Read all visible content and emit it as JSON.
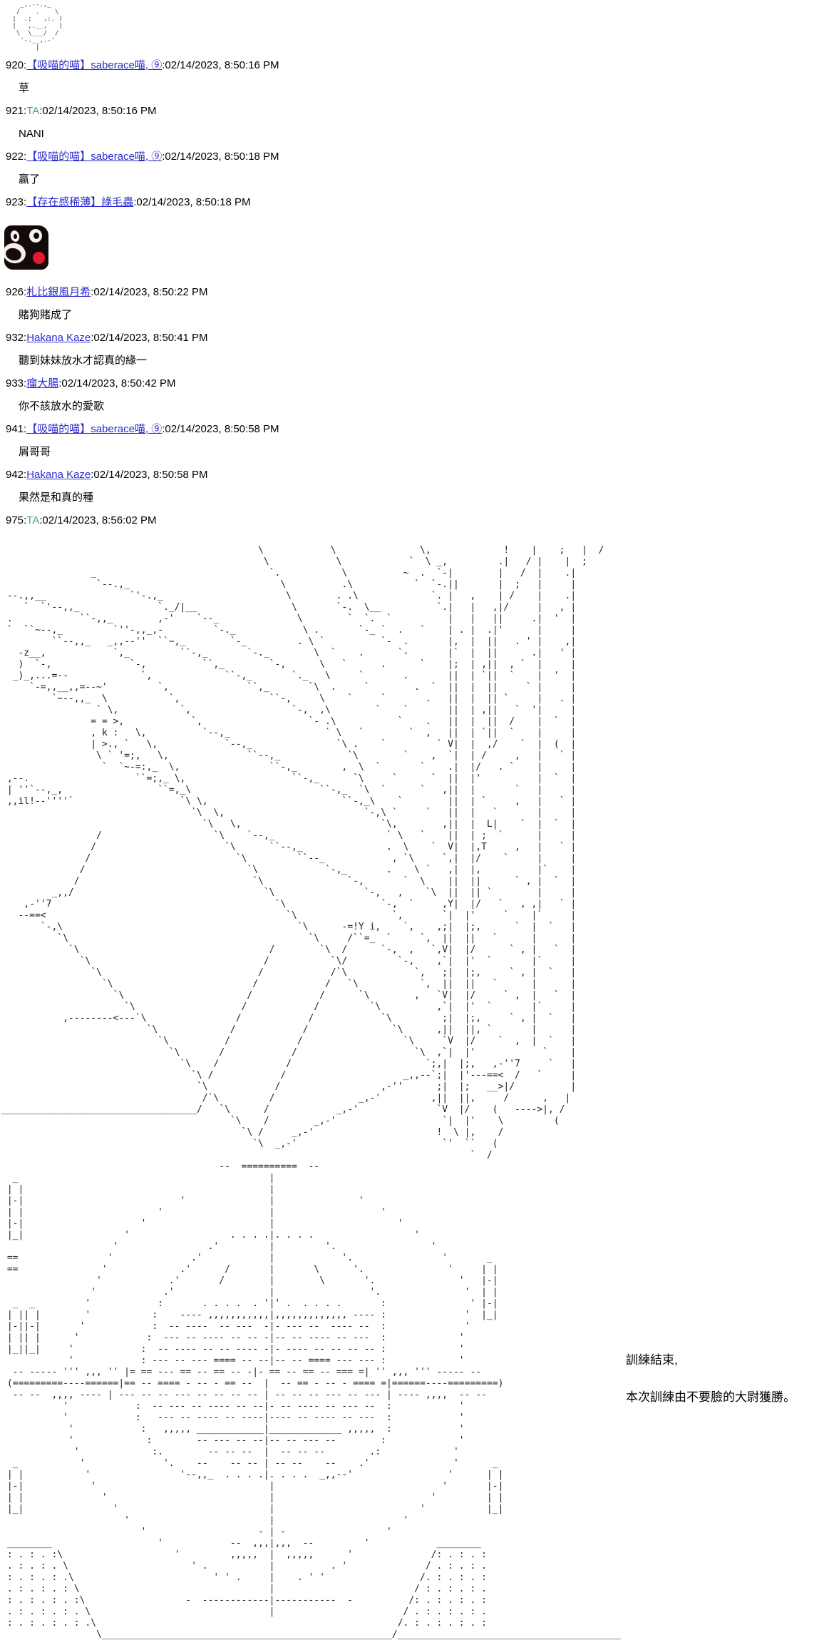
{
  "colors": {
    "link_blue": "#2a2ad0",
    "ta_green": "#4aa564",
    "text": "#000000",
    "aa_ink": "#222222",
    "kumamon_black": "#150a0b",
    "kumamon_red": "#e8192c"
  },
  "avatars": {
    "face_aa": "   _,.--.,_\n  /    .    \\\n |  .;   ,:. )\n |   ,.__,   )\n  \\  \\___/  /\n   '-.__,.-'\n       |",
    "kumamon": "kumamon-bear-avatar"
  },
  "posts": [
    {
      "num_label": "920:",
      "author": "【吸喵的喵】saberace喵, ⑨",
      "is_link": true,
      "time_label": ":02/14/2023, 8:50:16 PM",
      "body": "草"
    },
    {
      "num_label": "921:",
      "author": "TA",
      "is_link": false,
      "time_label": ":02/14/2023, 8:50:16 PM",
      "body": "NANI"
    },
    {
      "num_label": "922:",
      "author": "【吸喵的喵】saberace喵, ⑨",
      "is_link": true,
      "time_label": ":02/14/2023, 8:50:18 PM",
      "body": "贏了"
    },
    {
      "num_label": "923:",
      "author": "【存在感稀薄】綠毛蟲",
      "is_link": true,
      "time_label": ":02/14/2023, 8:50:18 PM",
      "body": ""
    },
    {
      "num_label": "926:",
      "author": "札比銀風月希",
      "is_link": true,
      "time_label": ":02/14/2023, 8:50:22 PM",
      "body": "賭狗賭成了"
    },
    {
      "num_label": "932:",
      "author": "Hakana Kaze",
      "is_link": true,
      "time_label": ":02/14/2023, 8:50:41 PM",
      "body": "聽到妹妹放水才認真的緣一"
    },
    {
      "num_label": "933:",
      "author": "瘤大腸",
      "is_link": true,
      "time_label": ":02/14/2023, 8:50:42 PM",
      "body": "你不該放水的愛歌"
    },
    {
      "num_label": "941:",
      "author": "【吸喵的喵】saberace喵, ⑨",
      "is_link": true,
      "time_label": ":02/14/2023, 8:50:58 PM",
      "body": "屑哥哥"
    },
    {
      "num_label": "942:",
      "author": "Hakana Kaze",
      "is_link": true,
      "time_label": ":02/14/2023, 8:50:58 PM",
      "body": "果然是和真的種"
    },
    {
      "num_label": "975:",
      "author": "TA",
      "is_link": false,
      "time_label": ":02/14/2023, 8:56:02 PM",
      "body": ""
    }
  ],
  "caption": {
    "line1": "訓練結束,",
    "line2": "本次訓練由不要臉的大尉獲勝。"
  },
  "aa": {
    "scene1": [
      "                                              \\            \\               \\,             !    |    ;   |  /",
      "                                               \\            \\            `  \\ _,         .|   / |    |  ;",
      "                _                               `.           \\          ~  .  `-|        |   /  |    .|",
      "                 `--.,_                           \\          .\\           `  `-.||       |  ;   |     |",
      " --.,,__               `'-.,_                      \\        . .\\             `. |   ,    | /    |    .|",
      "    `  `'--,,_              `._/|__                 \\       `-.  \\__          `.|   |   ,|/     |   , |",
      " .            ``-,,_        ,-'    `--_              \\        `  `.  `          |   |   ||     .|  '  |",
      " `  ``~--,_         `''-,,_,-         `-._            \\ .       `-_ `  .   `    | . |  .|'      |     |",
      "         ``--,,_   _,,--''  ``~,_        `-_         . \\ `          `-  .       |,  |  ||   . ' |    ,|",
      "   -z__,            `,_         ``-,_       `-._        \\  `    .      `-       |`  |  ||      .|   ' |",
      "   )  `-,              `-,          ``,_        `-,      \\   `      .      `    |;  | ,||  , `  |     |",
      "  _)_,...=--             `,             ``-,_       `._   \\     `       .       ||  | `||  `    |  '  |",
      "     `-=,,__,,=--~'         `,              ``,_       `\\  .     `        .  `  ||  |  ||     ` |     |",
      "         `~--,,_  \\           `,                ``-,     \\    `     `       .   ||  |  || `     |   . |",
      "                 ` \\,           `,                  `-,  ,\\        `    `       ||  | ,||   `  '|     |",
      "                = = >,            `,                   `- .\\           `    .   ||  |  ||  /    |  `  |",
      "                , k :   \\,          `--,_                 ` \\   `        `  ,   ||  | `||  `    |     |",
      "                | >., `   \\,            `--,_               `\\ .    `         ` V|  |  ,/    `  |  (  |",
      "                 \\ ` '=;,   \\,              ``--,_            `\\        `    ,  `|  | /     ,   |   ` |",
      "                  `  `~-=:,_  \\,                ``-,_        ,  \\  `       `    .|  |/   . `    |     |",
      " ,--.                   ``=;,_ \\,                   ``-,_      `\\     `      `  ||  |'          |  `  |",
      " | ''`--,_,                 ``=,_\\                       ``-,_  `\\  `      `   ,||  |       `   |     |",
      " ,,il!--''''`                   `\\ \\,                        ``-,_\\    `        ||  | `     ,   |   ` |",
      "                                  `\\  \\,                         `-,\\ `     `   ||  |   `       |     |",
      "                                    `\\   \\,                         `\\,        ,||  |  L|    `  |  `  |",
      "                 /                    `\\    `--,_                    ` \\   `    ||  | ;  `      |     |",
      "                /                       `\\      ``--,_               .  \\    `  V|  |,T     ,   |   ` |",
      "               /                          `\\         ``--_            , `\\     `,|  |/    `     |     |",
      "              /                             `\\            `-,_       .    \\ `   ,|  |,          |`    |",
      "             /                               `\\               `-,       `  \\    ||  ||      ` , |  `  |",
      "         _,,/                                  `\\                `-,   ,    `\\  ||  || `        |     |",
      "    ,-''7                                        `\\                 `-,  `     ,Y|  |/   `   , ,|   ` |",
      "   --==<                                           `\\                 `,       `|  |'     `    |`     |",
      "       `-,\\                                          `\\      -=!Y i,    `,    ,;|  |;,      `  |  `   |",
      "          `\\                                           `\\     /``=_  `     `,  ||  ||   `      |      |",
      "            `\\                                  /        `\\  /      `-,  ,   `,V|  |/      ` , |   `  |",
      "              `\\                               /           `\\/         `-,    ,`|  |'  `       |`     |",
      "                `\\                            /            /`\\            `,   ;|  |;,     ` , |  `   |",
      "                  `\\                         /            /   `\\           `,  ||  ||   `      |      |",
      "                    `\\                      /            /      `\\        ,   `V|  |/     ` ,  |   `  |",
      "                      `\\                   /            /         `\\          ,`|  |'  `       |`     |",
      "           ,--------<---`\\                /            /            `\\         ;|  |;,     ` , |  `   |",
      "                          `\\             /            /               `\\      ,||  ||, `       |      |",
      "                            `\\          /            /                  `\\     `V  |/    `  ,  |  `   |",
      "                              `\\       /            /                     `\\  ,`|  |'            `    |",
      "                                `\\    /            /                        `;,|  |;,   ,-''7     `   |",
      "                                  `\\ /            /                     _,,--`;|  |'---==<  /   `     |",
      "                                   `\\            /                  ,-''      ;|  |;   __>|/          |",
      "                                    /`\\         /               _,-'         ,||  ||,     /      ,   |",
      "___________________________________/   `\\      /            _,-'              `V  |/    (   ---->|, /",
      "                                         `\\    /        _,-'                   `|  |'    \\         (",
      "                                           `\\ /     _,-'                      !  \\ |,    /",
      "                                             `\\  _,-'                          `'  ``   (",
      "                                                                                    `  /"
    ],
    "scene2": [
      "                                       --  ==========  --",
      "  _                                             |",
      " | |                                            |",
      " |-|                            '               |               '",
      " | |                        '                   |                   '",
      " |-|                     '                      |                      '",
      " |_|                  '                  . . . .|. . . .                  '",
      "                    '                .'         |         '.                 '",
      " ==                '              .'            |            '.                '       _",
      " ==               '             .'      /       |       \\      '.               '     | |",
      "                 '            .'       /        |        \\       '.               '   |-|",
      "                '            .'                 |                 '.               '  | |",
      "  _  _         '            :       . . . .  . '|' .  . . . .       :               ' |-|",
      " | || |        '           :    ---- ,,,,,,,,,,,|,,,,,,,,,,,,, ---- :              '  |_|",
      " |-||-|       '            :  -- ----  -- ---  -|- --- --  ---- --  :              '",
      " | || |      '            :  --- -- ---- -- -- -|-- -- ---- -- ---  :             '",
      " |_||_|     '            :  -- ---- -- -- ---- -|- ---- -- -- -- -- :             '",
      "            '            : --- -- --- ==== -- --|-- -- ==== --- --- :             '",
      "  -- ----- ''' ,,, '' |= == --- == -- == -- -|- == -- == -- === =| '' ,,, ''' ----- --",
      " (=========----======|== -- ==== - -- - == --  |  -- == - -- - ==== =|======----=========)",
      "  -- --  ,,,, ---- | --- -- -- --- -- -- -- -- | -- -- -- --- -- --- | ---- ,,,,  -- --",
      "           '            :  -- --- -- ---- -- --|- -- ---- -- --- --  :            '",
      "           '            :   --- -- ---- -- ----|---- -- ---- -- ---  :            '",
      "            '            :   ,,,,, ____________|_____________ ,,,,,  :            '",
      "            '             :        -- --- -- --|-- -- --- --        :             '",
      "             '             :.        -- -- --  |  -- -- --        .:             '",
      "  _           '              '.    --    -- -- | -- --    --    .'               '      _",
      " | |           '                '--,,_  . . . .|. . . .  _,,--'                 '      | |",
      " |-|            '                               |                              '       |-|",
      " | |              '                             |                            '         | |",
      " |_|                '                           |                          '           |_|",
      "                      '                         |                       '",
      "                         '                    - | -                  '",
      " ________                   '            --  ,,,|,,,  --         '            ________",
      " : . : . :\\                    '         ,,,,,  |  ,,,,,      '              /: . : . :",
      " . : . : . \\                      ' .           |          . '              / . : . : .",
      " : . : . : .\\                         ' ' .     |    . ' '                 /. : . : . :",
      " . : . : . : \\                                  |                         / : . : . : .",
      " : . : . : . :\\                  -  ------------|-----------  -          /: . : . : . :",
      " . : . : . : . \\                                |                       / . : . : . : .",
      " : . : . : . : .\\                                                      /. : . : . : . :",
      "                 \\____________________________________________________/________________________________________"
    ]
  }
}
